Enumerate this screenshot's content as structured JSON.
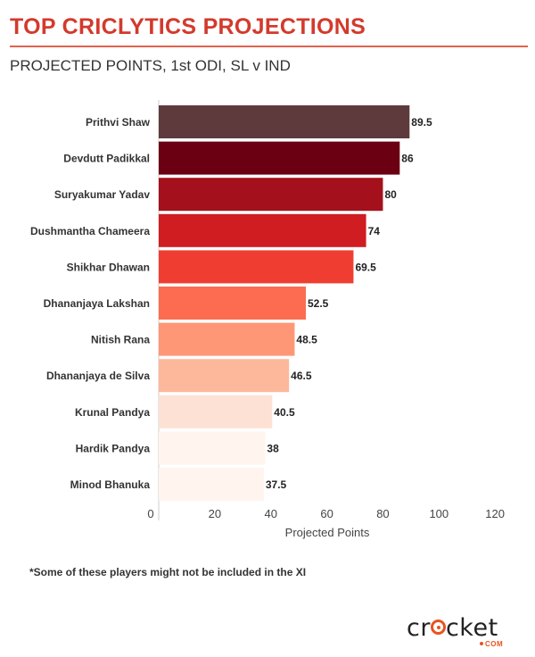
{
  "header": {
    "title": "TOP CRICLYTICS PROJECTIONS",
    "subtitle": "PROJECTED POINTS, 1st ODI, SL v IND"
  },
  "footnote": "*Some of these players might not be included in the XI",
  "logo": {
    "text_pre": "cr",
    "text_post": "cket",
    "suffix": "COM",
    "color": "#e8531f"
  },
  "chart_data": {
    "type": "bar",
    "orientation": "horizontal",
    "title": "PROJECTED POINTS, 1st ODI, SL v IND",
    "xlabel": "Projected Points",
    "ylabel": "",
    "xlim": [
      0,
      120
    ],
    "xticks": [
      0,
      20,
      40,
      60,
      80,
      100,
      120
    ],
    "grid": false,
    "categories": [
      "Prithvi Shaw",
      "Devdutt Padikkal",
      "Suryakumar Yadav",
      "Dushmantha Chameera",
      "Shikhar Dhawan",
      "Dhananjaya Lakshan",
      "Nitish Rana",
      "Dhananjaya de Silva",
      "Krunal Pandya",
      "Hardik Pandya",
      "Minod Bhanuka"
    ],
    "values": [
      89.5,
      86,
      80,
      74,
      69.5,
      52.5,
      48.5,
      46.5,
      40.5,
      38,
      37.5
    ],
    "value_labels": [
      "89.5",
      "86",
      "80",
      "74",
      "69.5",
      "52.5",
      "48.5",
      "46.5",
      "40.5",
      "38",
      "37.5"
    ],
    "colors": [
      "#5e3a3c",
      "#6b0012",
      "#a4101b",
      "#cf1d22",
      "#ef3e31",
      "#fd6b50",
      "#fe9775",
      "#fdb89c",
      "#fde1d4",
      "#fff4ee",
      "#fff4ee"
    ]
  }
}
